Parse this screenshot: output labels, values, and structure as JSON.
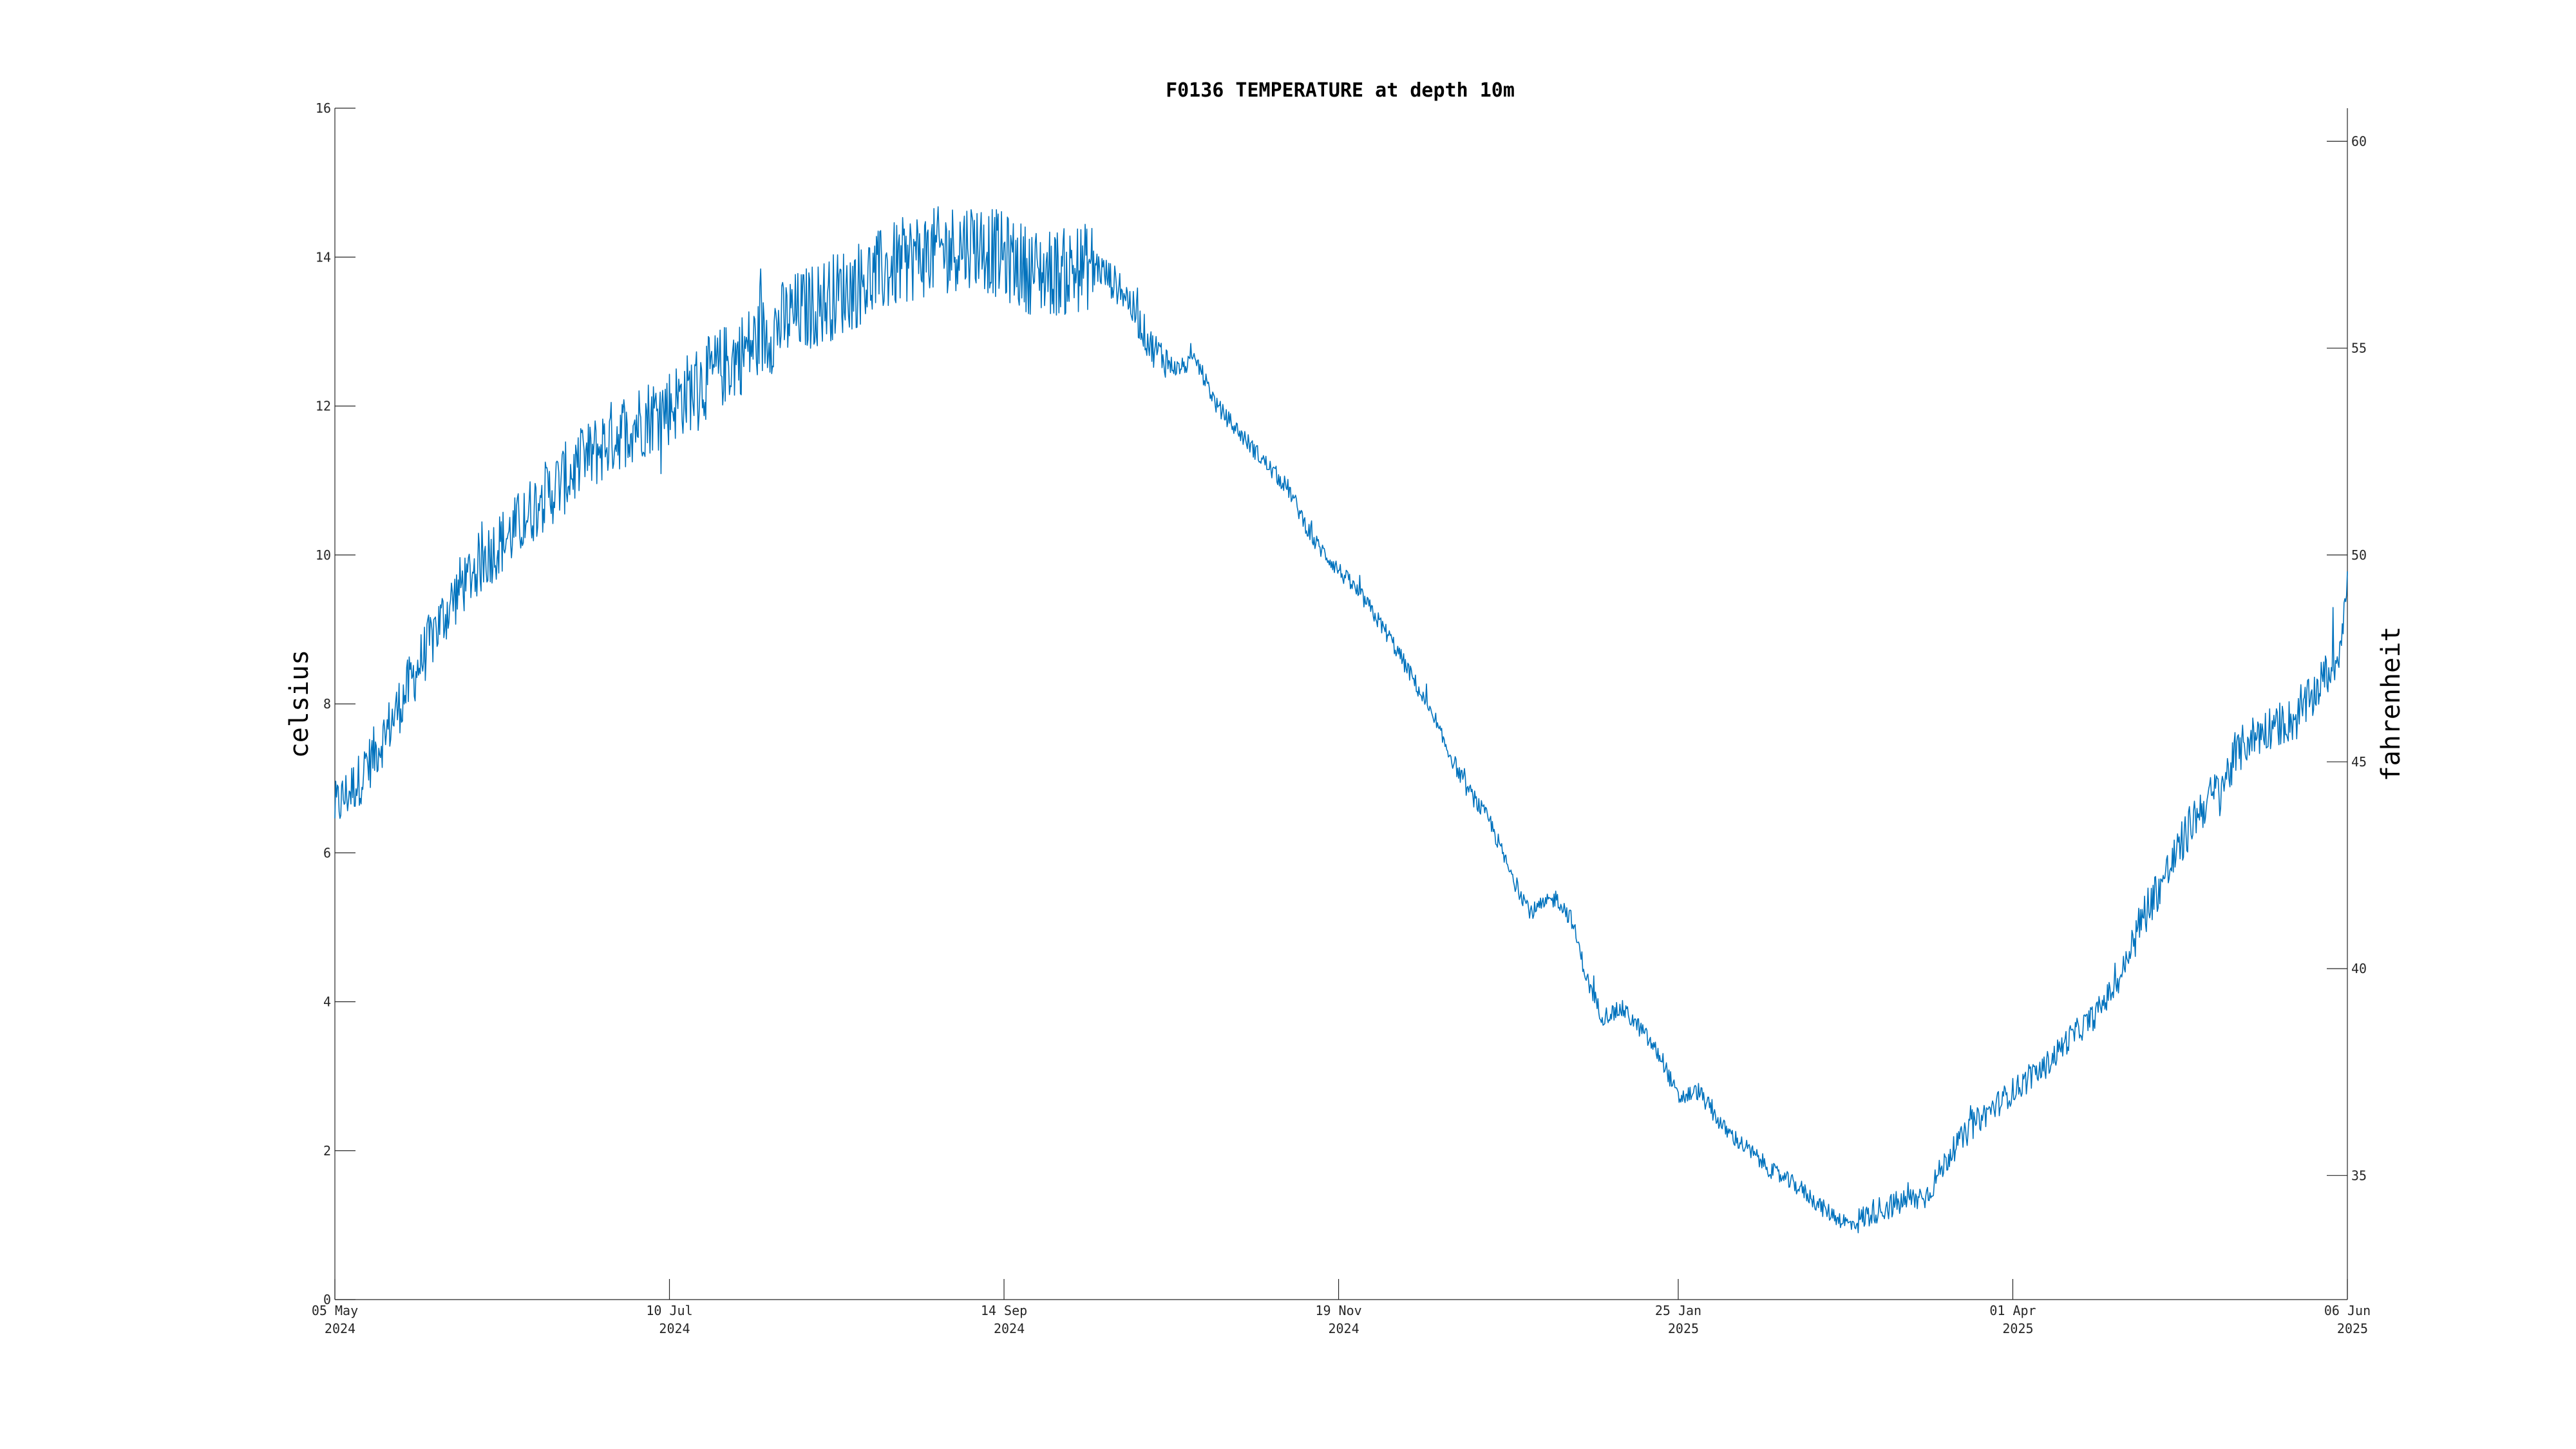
{
  "chart_data": {
    "type": "line",
    "title": "F0136 TEMPERATURE at depth 10m",
    "ylabel_left": "celsius",
    "ylabel_right": "fahrenheit",
    "xlabel": "",
    "x_range": [
      "2024-05-05",
      "2025-06-06"
    ],
    "ylim_left": [
      0,
      16
    ],
    "ylim_right": [
      32,
      60.8
    ],
    "y_ticks_left": [
      "0",
      "2",
      "4",
      "6",
      "8",
      "10",
      "12",
      "14",
      "16"
    ],
    "y_ticks_right": [
      "35",
      "40",
      "45",
      "50",
      "55",
      "60"
    ],
    "x_ticks": [
      {
        "date": "2024-05-05",
        "day": "05 May",
        "year": "2024"
      },
      {
        "date": "2024-07-10",
        "day": "10 Jul",
        "year": "2024"
      },
      {
        "date": "2024-09-14",
        "day": "14 Sep",
        "year": "2024"
      },
      {
        "date": "2024-11-19",
        "day": "19 Nov",
        "year": "2024"
      },
      {
        "date": "2025-01-25",
        "day": "25 Jan",
        "year": "2025"
      },
      {
        "date": "2025-04-01",
        "day": "01 Apr",
        "year": "2025"
      },
      {
        "date": "2025-06-06",
        "day": "06 Jun",
        "year": "2025"
      }
    ],
    "grid": false,
    "series": [
      {
        "color": "#0072BD",
        "points": [
          [
            "2024-05-05",
            6.6
          ],
          [
            "2024-05-10",
            7.0
          ],
          [
            "2024-05-15",
            7.6
          ],
          [
            "2024-05-20",
            8.3
          ],
          [
            "2024-05-25",
            9.0
          ],
          [
            "2024-05-30",
            9.6
          ],
          [
            "2024-06-04",
            10.0
          ],
          [
            "2024-06-09",
            10.3
          ],
          [
            "2024-06-14",
            10.7
          ],
          [
            "2024-06-19",
            11.0
          ],
          [
            "2024-06-24",
            11.3
          ],
          [
            "2024-06-29",
            11.6
          ],
          [
            "2024-07-04",
            11.8
          ],
          [
            "2024-07-10",
            12.0
          ],
          [
            "2024-07-16",
            12.3
          ],
          [
            "2024-07-22",
            12.6
          ],
          [
            "2024-07-28",
            12.9
          ],
          [
            "2024-08-03",
            13.2
          ],
          [
            "2024-08-09",
            13.4
          ],
          [
            "2024-08-15",
            13.6
          ],
          [
            "2024-08-21",
            13.8
          ],
          [
            "2024-08-27",
            14.0
          ],
          [
            "2024-09-02",
            14.1
          ],
          [
            "2024-09-08",
            14.2
          ],
          [
            "2024-09-14",
            14.0
          ],
          [
            "2024-09-20",
            13.8
          ],
          [
            "2024-09-26",
            13.8
          ],
          [
            "2024-10-02",
            13.9
          ],
          [
            "2024-10-08",
            13.5
          ],
          [
            "2024-10-13",
            12.8
          ],
          [
            "2024-10-18",
            12.5
          ],
          [
            "2024-10-22",
            12.6
          ],
          [
            "2024-10-26",
            12.0
          ],
          [
            "2024-10-31",
            11.6
          ],
          [
            "2024-11-05",
            11.2
          ],
          [
            "2024-11-09",
            10.9
          ],
          [
            "2024-11-14",
            10.2
          ],
          [
            "2024-11-19",
            9.8
          ],
          [
            "2024-11-24",
            9.4
          ],
          [
            "2024-11-29",
            8.9
          ],
          [
            "2024-12-04",
            8.3
          ],
          [
            "2024-12-09",
            7.6
          ],
          [
            "2024-12-14",
            6.9
          ],
          [
            "2024-12-19",
            6.4
          ],
          [
            "2024-12-23",
            5.7
          ],
          [
            "2024-12-27",
            5.2
          ],
          [
            "2025-01-01",
            5.4
          ],
          [
            "2025-01-04",
            5.1
          ],
          [
            "2025-01-07",
            4.3
          ],
          [
            "2025-01-10",
            3.8
          ],
          [
            "2025-01-14",
            3.9
          ],
          [
            "2025-01-18",
            3.6
          ],
          [
            "2025-01-22",
            3.2
          ],
          [
            "2025-01-25",
            2.7
          ],
          [
            "2025-01-29",
            2.8
          ],
          [
            "2025-02-03",
            2.3
          ],
          [
            "2025-02-08",
            2.0
          ],
          [
            "2025-02-13",
            1.7
          ],
          [
            "2025-02-18",
            1.5
          ],
          [
            "2025-02-23",
            1.2
          ],
          [
            "2025-02-28",
            1.0
          ],
          [
            "2025-03-05",
            1.2
          ],
          [
            "2025-03-10",
            1.3
          ],
          [
            "2025-03-15",
            1.4
          ],
          [
            "2025-03-20",
            2.0
          ],
          [
            "2025-03-25",
            2.4
          ],
          [
            "2025-04-01",
            2.8
          ],
          [
            "2025-04-07",
            3.1
          ],
          [
            "2025-04-12",
            3.5
          ],
          [
            "2025-04-17",
            3.8
          ],
          [
            "2025-04-22",
            4.3
          ],
          [
            "2025-04-27",
            5.2
          ],
          [
            "2025-05-02",
            5.8
          ],
          [
            "2025-05-07",
            6.5
          ],
          [
            "2025-05-12",
            6.9
          ],
          [
            "2025-05-17",
            7.5
          ],
          [
            "2025-05-22",
            7.7
          ],
          [
            "2025-05-27",
            7.8
          ],
          [
            "2025-06-01",
            8.3
          ],
          [
            "2025-06-04",
            8.6
          ],
          [
            "2025-06-06",
            9.6
          ]
        ]
      }
    ]
  }
}
